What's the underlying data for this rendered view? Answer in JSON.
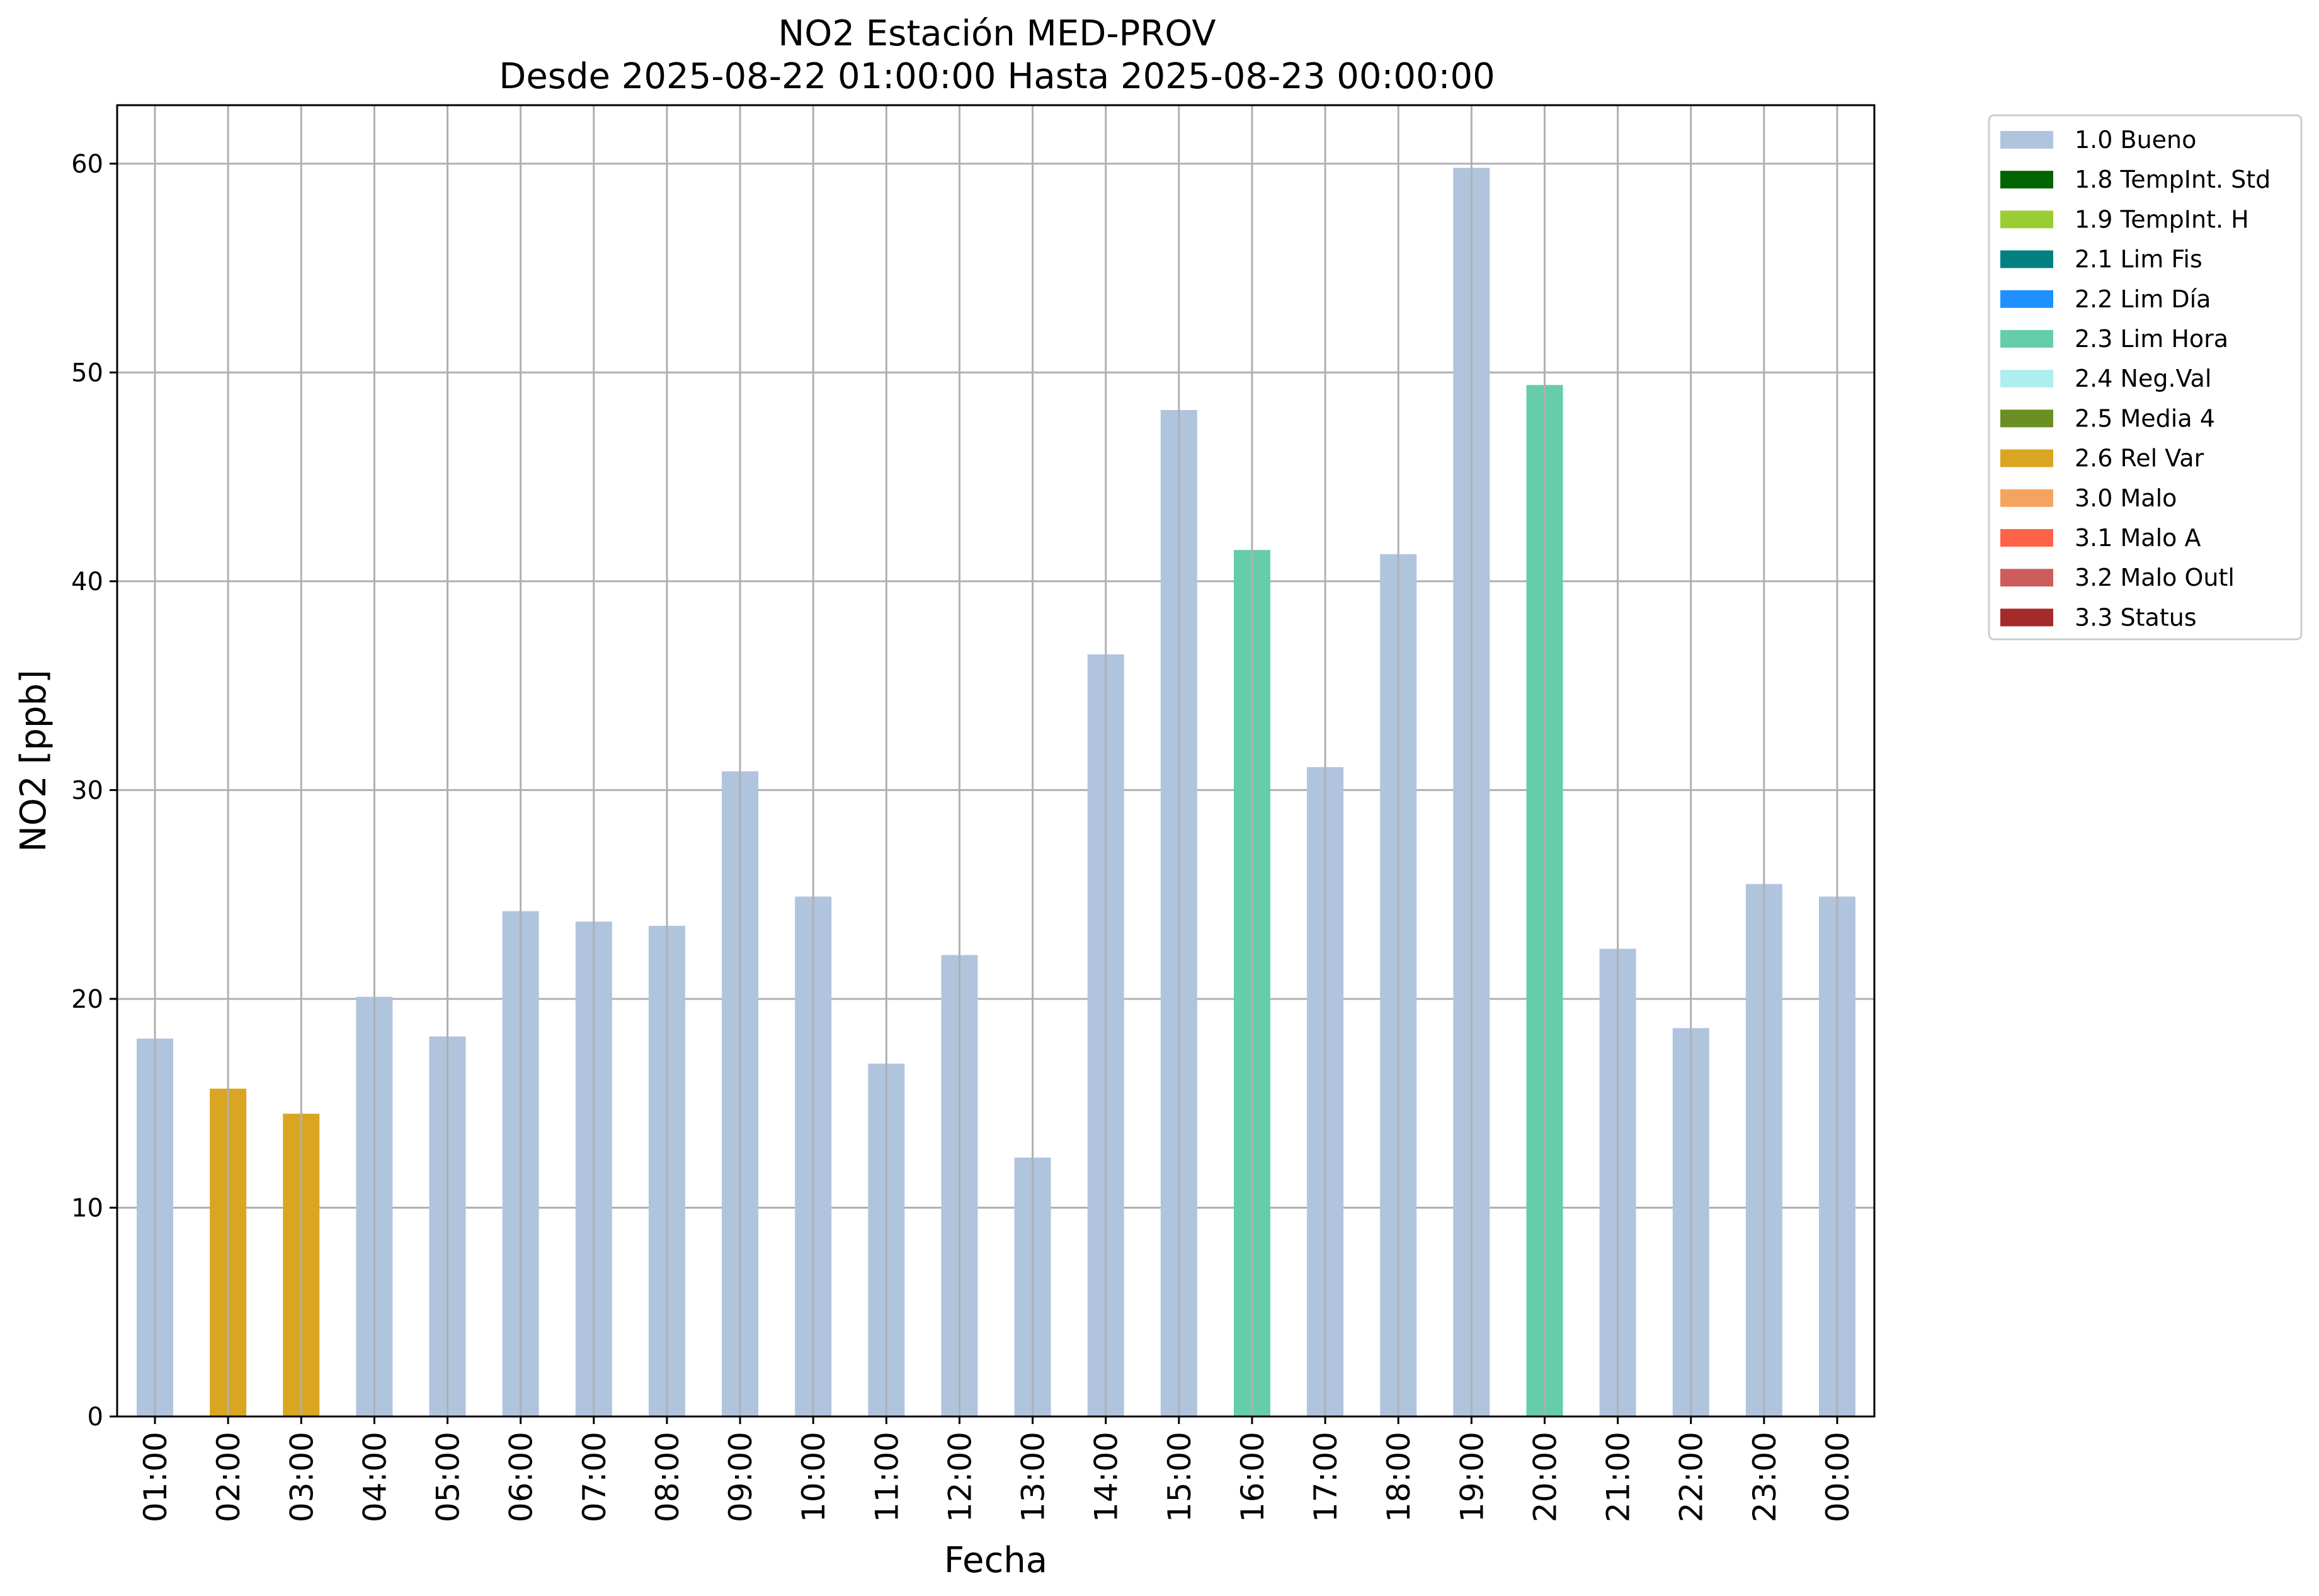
{
  "chart_data": {
    "type": "bar",
    "title": "NO2 Estación MED-PROV",
    "subtitle": "Desde 2025-08-22 01:00:00 Hasta 2025-08-23 00:00:00",
    "xlabel": "Fecha",
    "ylabel": "NO2 [ppb]",
    "ylim": [
      0,
      62.8
    ],
    "yticks": [
      "0",
      "10",
      "20",
      "30",
      "40",
      "50",
      "60"
    ],
    "grid": true,
    "legend_position": "outside-right-top",
    "categories": [
      "01:00",
      "02:00",
      "03:00",
      "04:00",
      "05:00",
      "06:00",
      "07:00",
      "08:00",
      "09:00",
      "10:00",
      "11:00",
      "12:00",
      "13:00",
      "14:00",
      "15:00",
      "16:00",
      "17:00",
      "18:00",
      "19:00",
      "20:00",
      "21:00",
      "22:00",
      "23:00",
      "00:00"
    ],
    "values": [
      18.1,
      15.7,
      14.5,
      20.1,
      18.2,
      24.2,
      23.7,
      23.5,
      30.9,
      24.9,
      16.9,
      22.1,
      12.4,
      36.5,
      48.2,
      41.5,
      31.1,
      41.3,
      59.8,
      49.4,
      22.4,
      18.6,
      25.5,
      24.9
    ],
    "flags": [
      "1.0 Bueno",
      "2.6 Rel Var",
      "2.6 Rel Var",
      "1.0 Bueno",
      "1.0 Bueno",
      "1.0 Bueno",
      "1.0 Bueno",
      "1.0 Bueno",
      "1.0 Bueno",
      "1.0 Bueno",
      "1.0 Bueno",
      "1.0 Bueno",
      "1.0 Bueno",
      "1.0 Bueno",
      "1.0 Bueno",
      "2.3 Lim Hora",
      "1.0 Bueno",
      "1.0 Bueno",
      "1.0 Bueno",
      "2.3 Lim Hora",
      "1.0 Bueno",
      "1.0 Bueno",
      "1.0 Bueno",
      "1.0 Bueno"
    ],
    "legend": [
      {
        "label": "1.0 Bueno",
        "color": "#b0c4de"
      },
      {
        "label": "1.8 TempInt. Std",
        "color": "#006400"
      },
      {
        "label": "1.9 TempInt. H",
        "color": "#9acd32"
      },
      {
        "label": "2.1 Lim Fis",
        "color": "#008080"
      },
      {
        "label": "2.2 Lim Día",
        "color": "#1e90ff"
      },
      {
        "label": "2.3 Lim Hora",
        "color": "#66cdaa"
      },
      {
        "label": "2.4 Neg.Val",
        "color": "#afeeee"
      },
      {
        "label": "2.5 Media 4",
        "color": "#6b8e23"
      },
      {
        "label": "2.6 Rel Var",
        "color": "#daa520"
      },
      {
        "label": "3.0 Malo",
        "color": "#f4a460"
      },
      {
        "label": "3.1 Malo A",
        "color": "#ff6347"
      },
      {
        "label": "3.2 Malo Outl",
        "color": "#cd5c5c"
      },
      {
        "label": "3.3 Status",
        "color": "#a52a2a"
      }
    ]
  }
}
